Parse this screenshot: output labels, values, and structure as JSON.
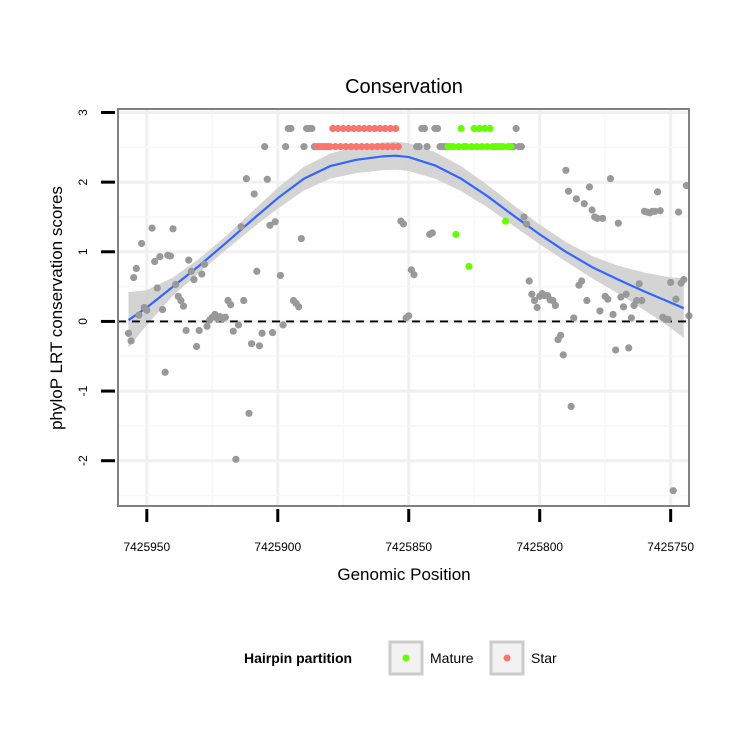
{
  "chart_data": {
    "type": "scatter",
    "title": "Conservation",
    "xlabel": "Genomic Position",
    "ylabel": "phyloP LRT conservation scores",
    "xlim": [
      7425961,
      7425743
    ],
    "x_reversed": true,
    "ylim": [
      -2.65,
      3.05
    ],
    "x_ticks": [
      7425950,
      7425900,
      7425850,
      7425800,
      7425750
    ],
    "x_tick_labels": [
      "7425950",
      "7425900",
      "7425850",
      "7425800",
      "7425750"
    ],
    "y_ticks": [
      -2,
      -1,
      0,
      1,
      2,
      3
    ],
    "y_tick_labels": [
      "-2",
      "-1",
      "0",
      "1",
      "2",
      "3"
    ],
    "reference_line": {
      "y": 0,
      "style": "dashed"
    },
    "colors": {
      "other": "#999999",
      "Mature": "#66ff00",
      "Star": "#f8766d",
      "smooth": "#3366ff",
      "band": "#cccccc"
    },
    "legend": {
      "title": "Hairpin partition",
      "position": "bottom",
      "entries": [
        {
          "label": "Mature",
          "color": "#66ff00"
        },
        {
          "label": "Star",
          "color": "#f8766d"
        }
      ]
    },
    "series": [
      {
        "name": "other",
        "points": [
          [
            7425957,
            -0.17
          ],
          [
            7425956,
            -0.28
          ],
          [
            7425955,
            0.63
          ],
          [
            7425954,
            0.76
          ],
          [
            7425953,
            0.09
          ],
          [
            7425952,
            1.12
          ],
          [
            7425951,
            0.2
          ],
          [
            7425950,
            0.16
          ],
          [
            7425948,
            1.34
          ],
          [
            7425947,
            0.86
          ],
          [
            7425946,
            0.48
          ],
          [
            7425945,
            0.93
          ],
          [
            7425944,
            0.17
          ],
          [
            7425943,
            -0.73
          ],
          [
            7425942,
            0.95
          ],
          [
            7425941,
            0.94
          ],
          [
            7425940,
            1.33
          ],
          [
            7425939,
            0.53
          ],
          [
            7425938,
            0.36
          ],
          [
            7425937,
            0.3
          ],
          [
            7425936,
            0.22
          ],
          [
            7425935,
            -0.13
          ],
          [
            7425934,
            0.88
          ],
          [
            7425933,
            0.72
          ],
          [
            7425932,
            0.6
          ],
          [
            7425931,
            -0.36
          ],
          [
            7425930,
            -0.13
          ],
          [
            7425929,
            0.68
          ],
          [
            7425928,
            0.82
          ],
          [
            7425927,
            -0.07
          ],
          [
            7425926,
            0.02
          ],
          [
            7425925,
            0.06
          ],
          [
            7425924,
            0.1
          ],
          [
            7425923,
            0.04
          ],
          [
            7425922,
            0.07
          ],
          [
            7425921,
            0.04
          ],
          [
            7425920,
            0.06
          ],
          [
            7425919,
            0.3
          ],
          [
            7425918,
            0.24
          ],
          [
            7425917,
            -0.14
          ],
          [
            7425916,
            -1.98
          ],
          [
            7425915,
            -0.05
          ],
          [
            7425914,
            1.36
          ],
          [
            7425913,
            0.3
          ],
          [
            7425912,
            2.05
          ],
          [
            7425911,
            -1.32
          ],
          [
            7425910,
            -0.32
          ],
          [
            7425909,
            1.83
          ],
          [
            7425908,
            0.72
          ],
          [
            7425907,
            -0.35
          ],
          [
            7425906,
            -0.17
          ],
          [
            7425905,
            2.51
          ],
          [
            7425904,
            2.04
          ],
          [
            7425903,
            1.38
          ],
          [
            7425902,
            -0.16
          ],
          [
            7425901,
            1.43
          ],
          [
            7425899,
            0.66
          ],
          [
            7425898,
            -0.05
          ],
          [
            7425897,
            2.51
          ],
          [
            7425896,
            2.77
          ],
          [
            7425895,
            2.77
          ],
          [
            7425894,
            0.3
          ],
          [
            7425893,
            0.26
          ],
          [
            7425892,
            0.21
          ],
          [
            7425891,
            1.19
          ],
          [
            7425890,
            2.51
          ],
          [
            7425889,
            2.77
          ],
          [
            7425888,
            2.77
          ],
          [
            7425887,
            2.77
          ],
          [
            7425886,
            2.51
          ],
          [
            7425853,
            1.44
          ],
          [
            7425852,
            1.4
          ],
          [
            7425851,
            0.05
          ],
          [
            7425850,
            0.08
          ],
          [
            7425849,
            0.74
          ],
          [
            7425848,
            0.67
          ],
          [
            7425847,
            2.51
          ],
          [
            7425846,
            2.51
          ],
          [
            7425845,
            2.77
          ],
          [
            7425844,
            2.77
          ],
          [
            7425843,
            2.51
          ],
          [
            7425842,
            1.25
          ],
          [
            7425841,
            1.27
          ],
          [
            7425840,
            2.77
          ],
          [
            7425839,
            2.77
          ],
          [
            7425838,
            2.51
          ],
          [
            7425837,
            2.51
          ],
          [
            7425836,
            2.51
          ],
          [
            7425810,
            2.51
          ],
          [
            7425809,
            2.77
          ],
          [
            7425808,
            2.51
          ],
          [
            7425807,
            2.51
          ],
          [
            7425806,
            1.5
          ],
          [
            7425805,
            1.4
          ],
          [
            7425804,
            0.58
          ],
          [
            7425803,
            0.39
          ],
          [
            7425802,
            0.3
          ],
          [
            7425801,
            0.2
          ],
          [
            7425800,
            0.36
          ],
          [
            7425799,
            0.4
          ],
          [
            7425798,
            0.37
          ],
          [
            7425797,
            0.37
          ],
          [
            7425796,
            0.31
          ],
          [
            7425795,
            0.3
          ],
          [
            7425794,
            0.23
          ],
          [
            7425793,
            -0.26
          ],
          [
            7425792,
            -0.2
          ],
          [
            7425791,
            -0.48
          ],
          [
            7425790,
            2.17
          ],
          [
            7425789,
            1.87
          ],
          [
            7425788,
            -1.22
          ],
          [
            7425787,
            0.05
          ],
          [
            7425786,
            1.76
          ],
          [
            7425785,
            0.52
          ],
          [
            7425784,
            0.58
          ],
          [
            7425783,
            1.69
          ],
          [
            7425782,
            0.3
          ],
          [
            7425781,
            1.93
          ],
          [
            7425780,
            1.6
          ],
          [
            7425779,
            1.5
          ],
          [
            7425778,
            1.48
          ],
          [
            7425777,
            0.15
          ],
          [
            7425776,
            1.48
          ],
          [
            7425775,
            0.36
          ],
          [
            7425774,
            0.32
          ],
          [
            7425773,
            2.05
          ],
          [
            7425772,
            0.1
          ],
          [
            7425771,
            -0.41
          ],
          [
            7425770,
            1.41
          ],
          [
            7425769,
            0.35
          ],
          [
            7425768,
            0.21
          ],
          [
            7425767,
            0.39
          ],
          [
            7425766,
            -0.38
          ],
          [
            7425765,
            0.05
          ],
          [
            7425764,
            0.23
          ],
          [
            7425763,
            0.3
          ],
          [
            7425762,
            0.54
          ],
          [
            7425761,
            0.3
          ],
          [
            7425760,
            1.58
          ],
          [
            7425759,
            1.57
          ],
          [
            7425758,
            1.56
          ],
          [
            7425757,
            1.58
          ],
          [
            7425756,
            1.58
          ],
          [
            7425755,
            1.86
          ],
          [
            7425754,
            1.59
          ],
          [
            7425753,
            0.06
          ],
          [
            7425752,
            0.03
          ],
          [
            7425751,
            0.03
          ],
          [
            7425750,
            0.56
          ],
          [
            7425749,
            -2.43
          ],
          [
            7425748,
            0.32
          ],
          [
            7425747,
            1.57
          ],
          [
            7425746,
            0.55
          ],
          [
            7425745,
            0.6
          ],
          [
            7425744,
            1.95
          ],
          [
            7425743,
            0.08
          ]
        ]
      },
      {
        "name": "Star",
        "points": [
          [
            7425885,
            2.51
          ],
          [
            7425884,
            2.51
          ],
          [
            7425883,
            2.51
          ],
          [
            7425882,
            2.51
          ],
          [
            7425881,
            2.51
          ],
          [
            7425880,
            2.51
          ],
          [
            7425879,
            2.77
          ],
          [
            7425878,
            2.51
          ],
          [
            7425877,
            2.77
          ],
          [
            7425876,
            2.51
          ],
          [
            7425875,
            2.77
          ],
          [
            7425874,
            2.51
          ],
          [
            7425873,
            2.77
          ],
          [
            7425872,
            2.51
          ],
          [
            7425871,
            2.77
          ],
          [
            7425870,
            2.51
          ],
          [
            7425869,
            2.77
          ],
          [
            7425868,
            2.51
          ],
          [
            7425867,
            2.77
          ],
          [
            7425866,
            2.51
          ],
          [
            7425865,
            2.77
          ],
          [
            7425864,
            2.51
          ],
          [
            7425863,
            2.77
          ],
          [
            7425862,
            2.51
          ],
          [
            7425861,
            2.77
          ],
          [
            7425860,
            2.51
          ],
          [
            7425859,
            2.77
          ],
          [
            7425858,
            2.51
          ],
          [
            7425857,
            2.77
          ],
          [
            7425856,
            2.51
          ],
          [
            7425855,
            2.77
          ],
          [
            7425854,
            2.51
          ]
        ]
      },
      {
        "name": "Mature",
        "points": [
          [
            7425835,
            2.51
          ],
          [
            7425834,
            2.51
          ],
          [
            7425833,
            2.51
          ],
          [
            7425832,
            1.25
          ],
          [
            7425831,
            2.51
          ],
          [
            7425830,
            2.77
          ],
          [
            7425829,
            2.51
          ],
          [
            7425828,
            2.51
          ],
          [
            7425827,
            0.79
          ],
          [
            7425826,
            2.51
          ],
          [
            7425825,
            2.77
          ],
          [
            7425824,
            2.51
          ],
          [
            7425823,
            2.77
          ],
          [
            7425822,
            2.51
          ],
          [
            7425821,
            2.77
          ],
          [
            7425820,
            2.51
          ],
          [
            7425819,
            2.77
          ],
          [
            7425818,
            2.51
          ],
          [
            7425817,
            2.51
          ],
          [
            7425816,
            2.51
          ],
          [
            7425815,
            2.51
          ],
          [
            7425814,
            2.51
          ],
          [
            7425813,
            1.44
          ],
          [
            7425812,
            2.51
          ],
          [
            7425811,
            2.51
          ]
        ]
      }
    ],
    "smooth": [
      [
        7425957,
        0.02
      ],
      [
        7425950,
        0.2
      ],
      [
        7425940,
        0.5
      ],
      [
        7425930,
        0.8
      ],
      [
        7425920,
        1.12
      ],
      [
        7425910,
        1.45
      ],
      [
        7425900,
        1.77
      ],
      [
        7425890,
        2.05
      ],
      [
        7425880,
        2.23
      ],
      [
        7425870,
        2.32
      ],
      [
        7425860,
        2.37
      ],
      [
        7425855,
        2.38
      ],
      [
        7425850,
        2.36
      ],
      [
        7425840,
        2.24
      ],
      [
        7425830,
        2.05
      ],
      [
        7425820,
        1.8
      ],
      [
        7425810,
        1.52
      ],
      [
        7425800,
        1.25
      ],
      [
        7425790,
        1.0
      ],
      [
        7425780,
        0.78
      ],
      [
        7425770,
        0.6
      ],
      [
        7425760,
        0.43
      ],
      [
        7425750,
        0.27
      ],
      [
        7425745,
        0.19
      ]
    ],
    "band_half_width": [
      [
        7425957,
        0.4
      ],
      [
        7425950,
        0.25
      ],
      [
        7425940,
        0.13
      ],
      [
        7425930,
        0.1
      ],
      [
        7425920,
        0.1
      ],
      [
        7425910,
        0.12
      ],
      [
        7425900,
        0.15
      ],
      [
        7425890,
        0.17
      ],
      [
        7425880,
        0.18
      ],
      [
        7425870,
        0.19
      ],
      [
        7425860,
        0.2
      ],
      [
        7425850,
        0.2
      ],
      [
        7425840,
        0.19
      ],
      [
        7425830,
        0.18
      ],
      [
        7425820,
        0.16
      ],
      [
        7425810,
        0.15
      ],
      [
        7425800,
        0.14
      ],
      [
        7425790,
        0.14
      ],
      [
        7425780,
        0.16
      ],
      [
        7425770,
        0.2
      ],
      [
        7425760,
        0.27
      ],
      [
        7425750,
        0.36
      ],
      [
        7425745,
        0.43
      ]
    ]
  }
}
